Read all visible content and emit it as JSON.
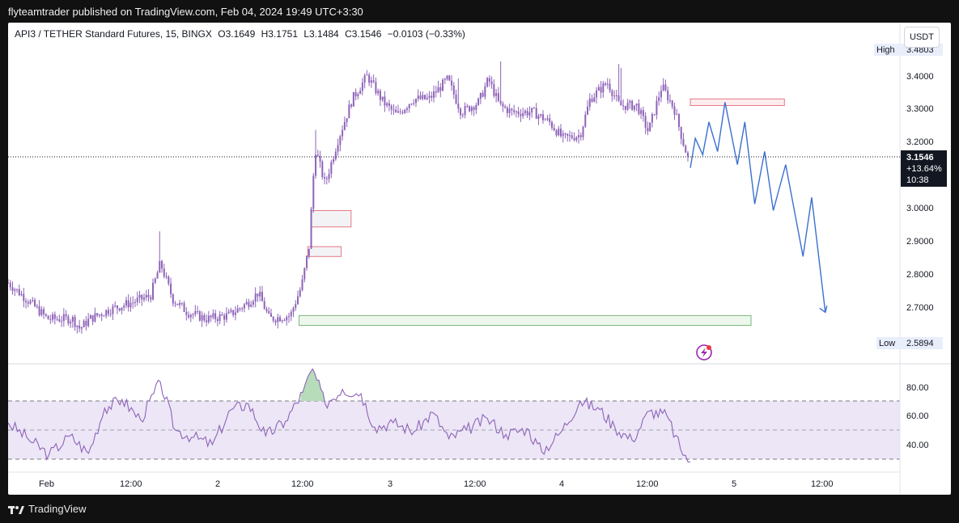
{
  "header": {
    "published_text": "flyteamtrader published on TradingView.com, Feb 04, 2024 19:49 UTC+3:30"
  },
  "legend": {
    "symbol": "API3 / TETHER Standard Futures, 15, BINGX",
    "open": "O3.1649",
    "high": "H3.1751",
    "low": "L3.1484",
    "close": "C3.1546",
    "change": "−0.0103 (−0.33%)"
  },
  "currency_button": "USDT",
  "price_badge": {
    "price": "3.1546",
    "change": "+13.64%",
    "countdown": "10:38"
  },
  "high_marker": {
    "label": "High",
    "value": "3.4803"
  },
  "low_marker": {
    "label": "Low",
    "value": "2.5894"
  },
  "footer": {
    "brand": "TradingView",
    "logo_icon": "tradingview-logo-icon"
  },
  "colors": {
    "candle": "#8e63b8",
    "projection": "#3a6fd0",
    "rsi_line": "#8e63b8",
    "rsi_band": "#ece6f6",
    "supply_zone": "#e57886",
    "demand_zone": "#7ab97a"
  },
  "chart_data": [
    {
      "type": "candlestick",
      "title": "API3 / TETHER Standard Futures, 15, BINGX",
      "x_ticks": [
        "Feb",
        "12:00",
        "2",
        "12:00",
        "3",
        "12:00",
        "4",
        "12:00",
        "5",
        "12:00"
      ],
      "y_ticks": [
        "2.7000",
        "2.8000",
        "2.9000",
        "3.0000",
        "3.1000",
        "3.2000",
        "3.3000",
        "3.4000"
      ],
      "ylim": [
        2.57,
        3.51
      ],
      "last_price": 3.1546,
      "high": 3.4803,
      "low": 2.5894,
      "price_path": [
        {
          "t": 0,
          "p": 2.77
        },
        {
          "t": 1.5,
          "p": 2.72
        },
        {
          "t": 3.2,
          "p": 2.66
        },
        {
          "t": 5.2,
          "p": 2.66
        },
        {
          "t": 5.8,
          "p": 2.63
        },
        {
          "t": 6.6,
          "p": 2.66
        },
        {
          "t": 8.3,
          "p": 2.69
        },
        {
          "t": 10,
          "p": 2.71
        },
        {
          "t": 11.5,
          "p": 2.73
        },
        {
          "t": 12.3,
          "p": 2.83
        },
        {
          "t": 13.3,
          "p": 2.72
        },
        {
          "t": 14.5,
          "p": 2.68
        },
        {
          "t": 16,
          "p": 2.66
        },
        {
          "t": 17.8,
          "p": 2.67
        },
        {
          "t": 19.4,
          "p": 2.71
        },
        {
          "t": 20.2,
          "p": 2.74
        },
        {
          "t": 21.1,
          "p": 2.66
        },
        {
          "t": 22.8,
          "p": 2.67
        },
        {
          "t": 23.7,
          "p": 2.76
        },
        {
          "t": 24.3,
          "p": 2.88
        },
        {
          "t": 24.8,
          "p": 3.18
        },
        {
          "t": 25.6,
          "p": 3.07
        },
        {
          "t": 26.6,
          "p": 3.2
        },
        {
          "t": 27.8,
          "p": 3.33
        },
        {
          "t": 29,
          "p": 3.4
        },
        {
          "t": 30.3,
          "p": 3.32
        },
        {
          "t": 31.4,
          "p": 3.28
        },
        {
          "t": 32.7,
          "p": 3.33
        },
        {
          "t": 34,
          "p": 3.33
        },
        {
          "t": 35.5,
          "p": 3.39
        },
        {
          "t": 36.6,
          "p": 3.29
        },
        {
          "t": 38,
          "p": 3.32
        },
        {
          "t": 38.8,
          "p": 3.39
        },
        {
          "t": 39.7,
          "p": 3.31
        },
        {
          "t": 40.7,
          "p": 3.29
        },
        {
          "t": 42.4,
          "p": 3.29
        },
        {
          "t": 43.7,
          "p": 3.26
        },
        {
          "t": 44.8,
          "p": 3.21
        },
        {
          "t": 46.2,
          "p": 3.22
        },
        {
          "t": 47,
          "p": 3.33
        },
        {
          "t": 48.4,
          "p": 3.38
        },
        {
          "t": 49.4,
          "p": 3.31
        },
        {
          "t": 50.8,
          "p": 3.31
        },
        {
          "t": 51.7,
          "p": 3.23
        },
        {
          "t": 52.8,
          "p": 3.37
        },
        {
          "t": 53.8,
          "p": 3.3
        },
        {
          "t": 54.5,
          "p": 3.2
        },
        {
          "t": 54.9,
          "p": 3.15
        }
      ],
      "projection": [
        {
          "t": 55.1,
          "p": 3.12
        },
        {
          "t": 55.5,
          "p": 3.21
        },
        {
          "t": 56.1,
          "p": 3.16
        },
        {
          "t": 56.6,
          "p": 3.26
        },
        {
          "t": 57.3,
          "p": 3.17
        },
        {
          "t": 57.9,
          "p": 3.32
        },
        {
          "t": 58.9,
          "p": 3.13
        },
        {
          "t": 59.5,
          "p": 3.26
        },
        {
          "t": 60.3,
          "p": 3.01
        },
        {
          "t": 61.1,
          "p": 3.17
        },
        {
          "t": 61.8,
          "p": 2.99
        },
        {
          "t": 62.8,
          "p": 3.13
        },
        {
          "t": 64.2,
          "p": 2.85
        },
        {
          "t": 64.9,
          "p": 3.03
        },
        {
          "t": 66,
          "p": 2.68
        }
      ],
      "zones": [
        {
          "kind": "supply",
          "t0": 55.1,
          "t1": 62.7,
          "p_low": 3.31,
          "p_high": 3.33
        },
        {
          "kind": "imbalance",
          "t0": 24.5,
          "t1": 27.7,
          "p_low": 2.94,
          "p_high": 2.99
        },
        {
          "kind": "imbalance",
          "t0": 24.2,
          "t1": 26.9,
          "p_low": 2.85,
          "p_high": 2.88
        },
        {
          "kind": "demand",
          "t0": 23.5,
          "t1": 60,
          "p_low": 2.64,
          "p_high": 2.67
        }
      ]
    },
    {
      "type": "line",
      "title": "RSI",
      "y_ticks": [
        "40.00",
        "60.00",
        "80.00"
      ],
      "ylim": [
        22,
        99
      ],
      "band": [
        30,
        70
      ],
      "midline": 50,
      "values": [
        {
          "t": 0,
          "v": 55
        },
        {
          "t": 1.5,
          "v": 45
        },
        {
          "t": 3.3,
          "v": 33
        },
        {
          "t": 5,
          "v": 46
        },
        {
          "t": 6.5,
          "v": 34
        },
        {
          "t": 7.8,
          "v": 65
        },
        {
          "t": 9.2,
          "v": 71
        },
        {
          "t": 10.7,
          "v": 57
        },
        {
          "t": 12.3,
          "v": 83
        },
        {
          "t": 13.5,
          "v": 50
        },
        {
          "t": 15,
          "v": 45
        },
        {
          "t": 16.5,
          "v": 40
        },
        {
          "t": 18,
          "v": 64
        },
        {
          "t": 19.4,
          "v": 68
        },
        {
          "t": 20.8,
          "v": 46
        },
        {
          "t": 22.4,
          "v": 56
        },
        {
          "t": 23.8,
          "v": 76
        },
        {
          "t": 24.6,
          "v": 92
        },
        {
          "t": 25.6,
          "v": 68
        },
        {
          "t": 27,
          "v": 78
        },
        {
          "t": 28.5,
          "v": 75
        },
        {
          "t": 29.6,
          "v": 52
        },
        {
          "t": 31.1,
          "v": 55
        },
        {
          "t": 32.8,
          "v": 49
        },
        {
          "t": 34.3,
          "v": 62
        },
        {
          "t": 35.6,
          "v": 44
        },
        {
          "t": 37,
          "v": 50
        },
        {
          "t": 38.7,
          "v": 58
        },
        {
          "t": 40.2,
          "v": 47
        },
        {
          "t": 41.9,
          "v": 51
        },
        {
          "t": 43.1,
          "v": 35
        },
        {
          "t": 44.6,
          "v": 48
        },
        {
          "t": 46.2,
          "v": 70
        },
        {
          "t": 47.8,
          "v": 64
        },
        {
          "t": 49,
          "v": 52
        },
        {
          "t": 50.4,
          "v": 43
        },
        {
          "t": 51.8,
          "v": 63
        },
        {
          "t": 53.2,
          "v": 60
        },
        {
          "t": 54.3,
          "v": 37
        },
        {
          "t": 55.1,
          "v": 28
        }
      ]
    }
  ]
}
